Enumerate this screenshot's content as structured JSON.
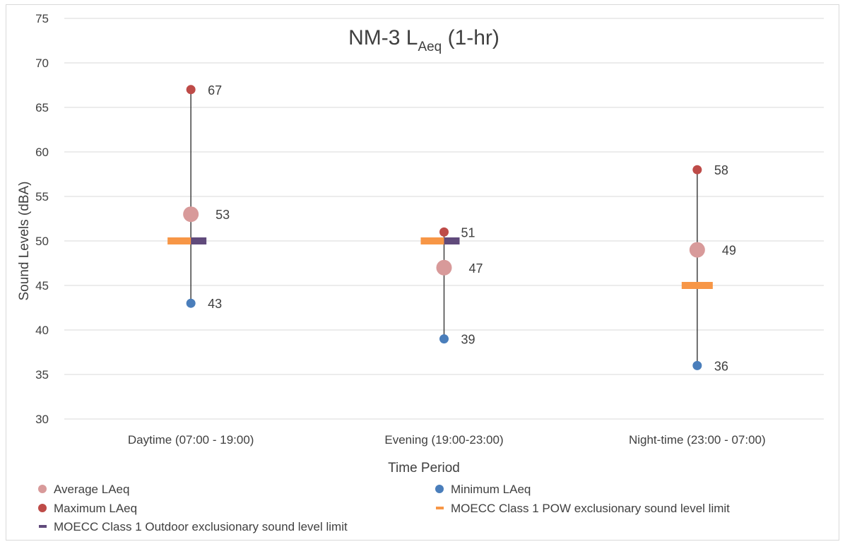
{
  "chart_data": {
    "type": "scatter",
    "title": {
      "main": "NM-3 L",
      "sub": "Aeq",
      "suffix": " (1-hr)"
    },
    "xlabel": "Time Period",
    "ylabel": "Sound Levels (dBA)",
    "ylim": [
      30,
      75
    ],
    "ytick_step": 5,
    "grid": true,
    "legend_position": "bottom",
    "categories": [
      "Daytime (07:00 - 19:00)",
      "Evening (19:00-23:00)",
      "Night-time (23:00 - 07:00)"
    ],
    "series": [
      {
        "name": "Average LAeq",
        "kind": "dot-large",
        "color": "#d89a9a",
        "values": [
          53,
          47,
          49
        ],
        "labels": [
          "53",
          "47",
          "49"
        ]
      },
      {
        "name": "Minimum LAeq",
        "kind": "dot",
        "color": "#4a7ebb",
        "values": [
          43,
          39,
          36
        ],
        "labels": [
          "43",
          "39",
          "36"
        ]
      },
      {
        "name": "Maximum LAeq",
        "kind": "dot",
        "color": "#be4b48",
        "values": [
          67,
          51,
          58
        ],
        "labels": [
          "67",
          "51",
          "58"
        ]
      },
      {
        "name": "MOECC Class 1 POW exclusionary sound level limit",
        "kind": "dash",
        "color": "#f79646",
        "values": [
          50,
          50,
          45
        ]
      },
      {
        "name": "MOECC Class 1 Outdoor exclusionary sound level limit",
        "kind": "dash",
        "color": "#604a7b",
        "values": [
          50,
          50,
          null
        ]
      }
    ]
  }
}
